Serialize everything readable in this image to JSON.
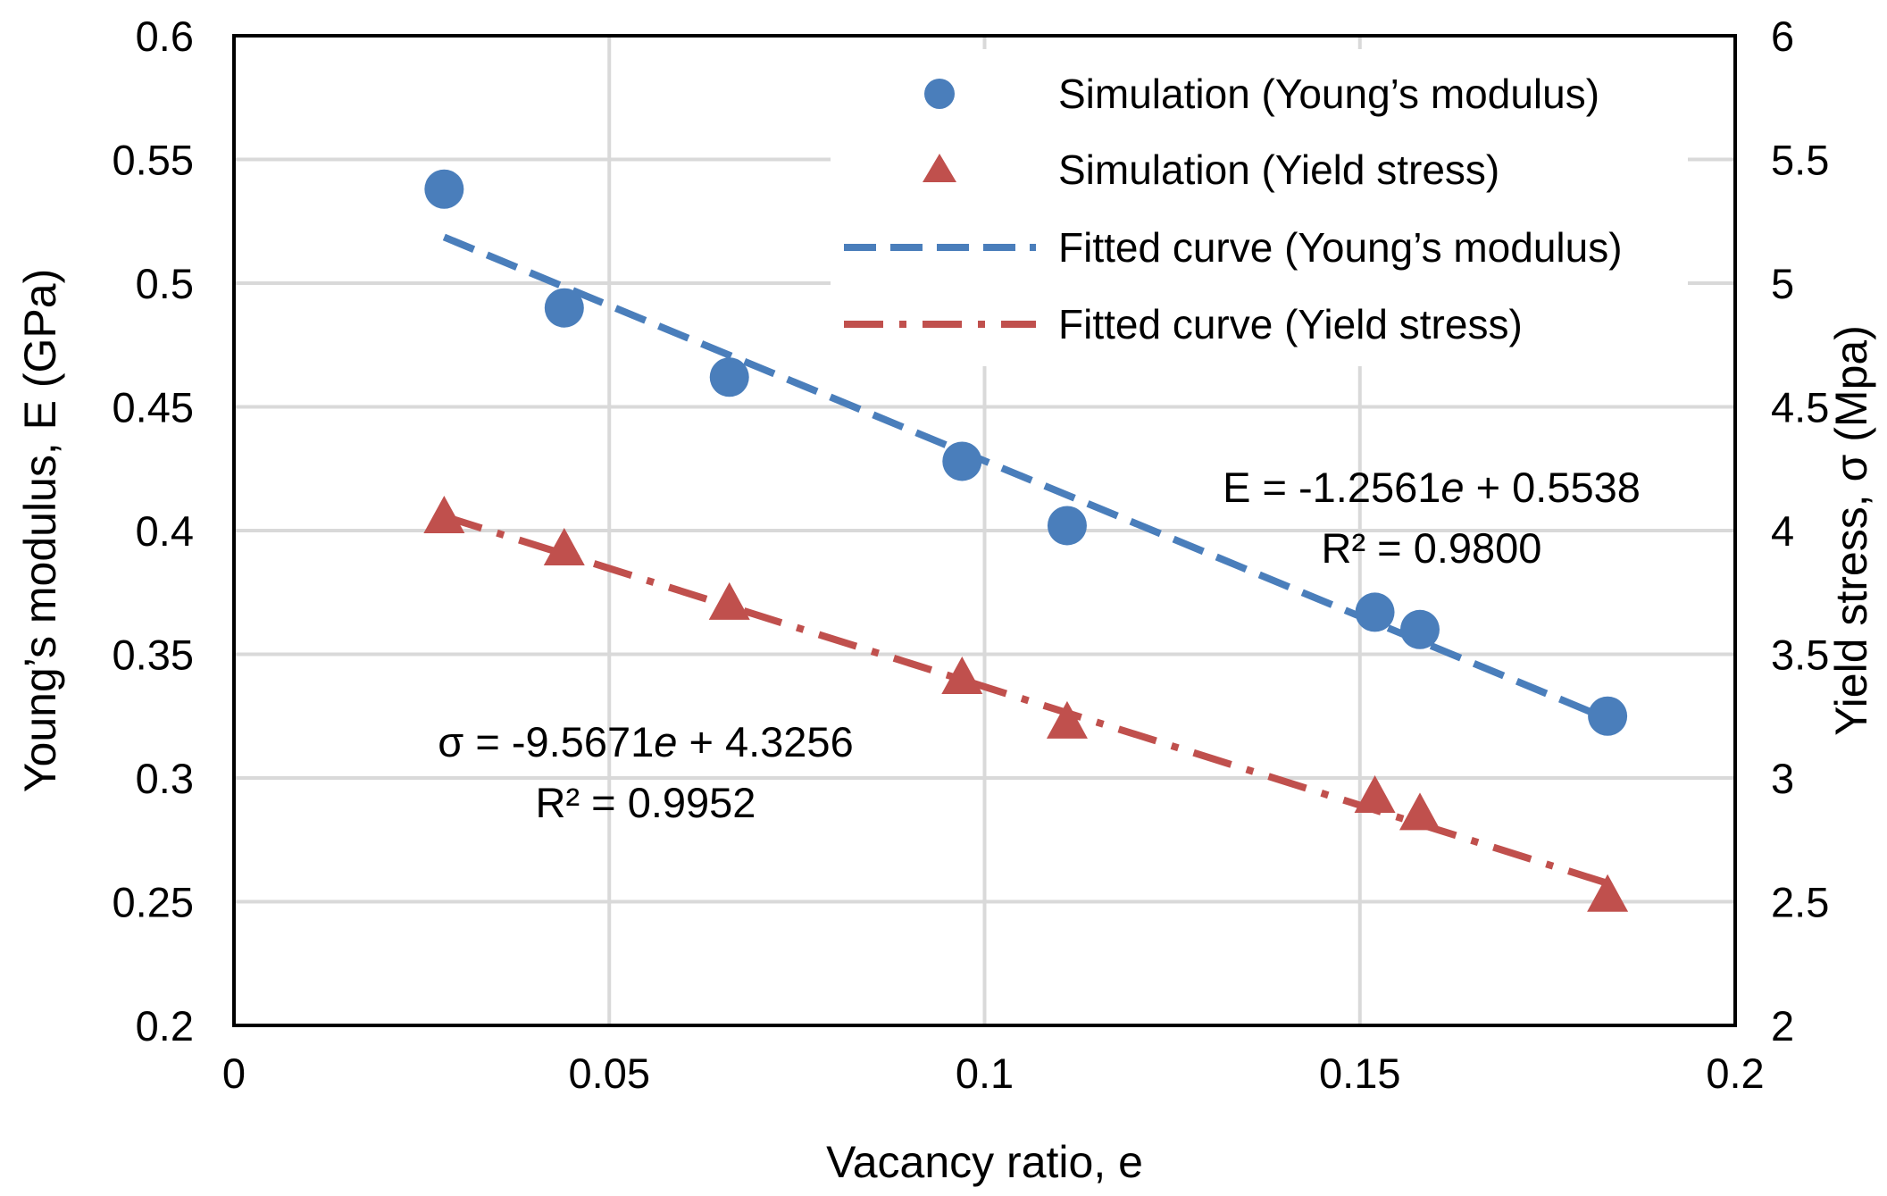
{
  "chart_data": {
    "type": "scatter",
    "title": "",
    "xlabel": "Vacancy ratio, e",
    "ylabel_left": "Young’s modulus, E (GPa)",
    "ylabel_right": "Yield stress, σ (Mpa)",
    "xlim": [
      0,
      0.2
    ],
    "ylim_left": [
      0.2,
      0.6
    ],
    "ylim_right": [
      2,
      6
    ],
    "x_ticks": [
      "0",
      "0.05",
      "0.1",
      "0.15",
      "0.2"
    ],
    "y_left_ticks": [
      "0.2",
      "0.25",
      "0.3",
      "0.35",
      "0.4",
      "0.45",
      "0.5",
      "0.55",
      "0.6"
    ],
    "y_right_ticks": [
      "2",
      "2.5",
      "3",
      "3.5",
      "4",
      "4.5",
      "5",
      "5.5",
      "6"
    ],
    "grid": true,
    "legend_position": "top-right",
    "series": [
      {
        "name": "Simulation (Young’s modulus)",
        "kind": "points",
        "axis": "left",
        "marker": "circle",
        "color": "#4a7ebb",
        "x": [
          0.028,
          0.044,
          0.066,
          0.097,
          0.111,
          0.152,
          0.158,
          0.183
        ],
        "y": [
          0.538,
          0.49,
          0.462,
          0.428,
          0.402,
          0.367,
          0.36,
          0.325
        ]
      },
      {
        "name": "Simulation (Yield stress)",
        "kind": "points",
        "axis": "right",
        "marker": "triangle",
        "color": "#c0504d",
        "x": [
          0.028,
          0.044,
          0.066,
          0.097,
          0.111,
          0.152,
          0.158,
          0.183
        ],
        "y": [
          4.05,
          3.92,
          3.7,
          3.4,
          3.22,
          2.92,
          2.85,
          2.52
        ]
      },
      {
        "name": "Fitted curve (Young’s modulus)",
        "kind": "line",
        "axis": "left",
        "dash": "dashed",
        "color": "#4a7ebb",
        "x": [
          0.028,
          0.183
        ],
        "y": [
          0.5186,
          0.3239
        ]
      },
      {
        "name": "Fitted curve (Yield stress)",
        "kind": "line",
        "axis": "right",
        "dash": "dash-dot",
        "color": "#c0504d",
        "x": [
          0.028,
          0.183
        ],
        "y": [
          4.0576,
          2.5743
        ]
      }
    ],
    "annotations": [
      {
        "id": "e-fit",
        "line1_prefix": "E = -1.2561",
        "line1_var": "e",
        "line1_suffix": " + 0.5538",
        "line2": "R² = 0.9800"
      },
      {
        "id": "s-fit",
        "line1_prefix": "σ = -9.5671",
        "line1_var": "e",
        "line1_suffix": " + 4.3256",
        "line2": "R² = 0.9952"
      }
    ]
  }
}
